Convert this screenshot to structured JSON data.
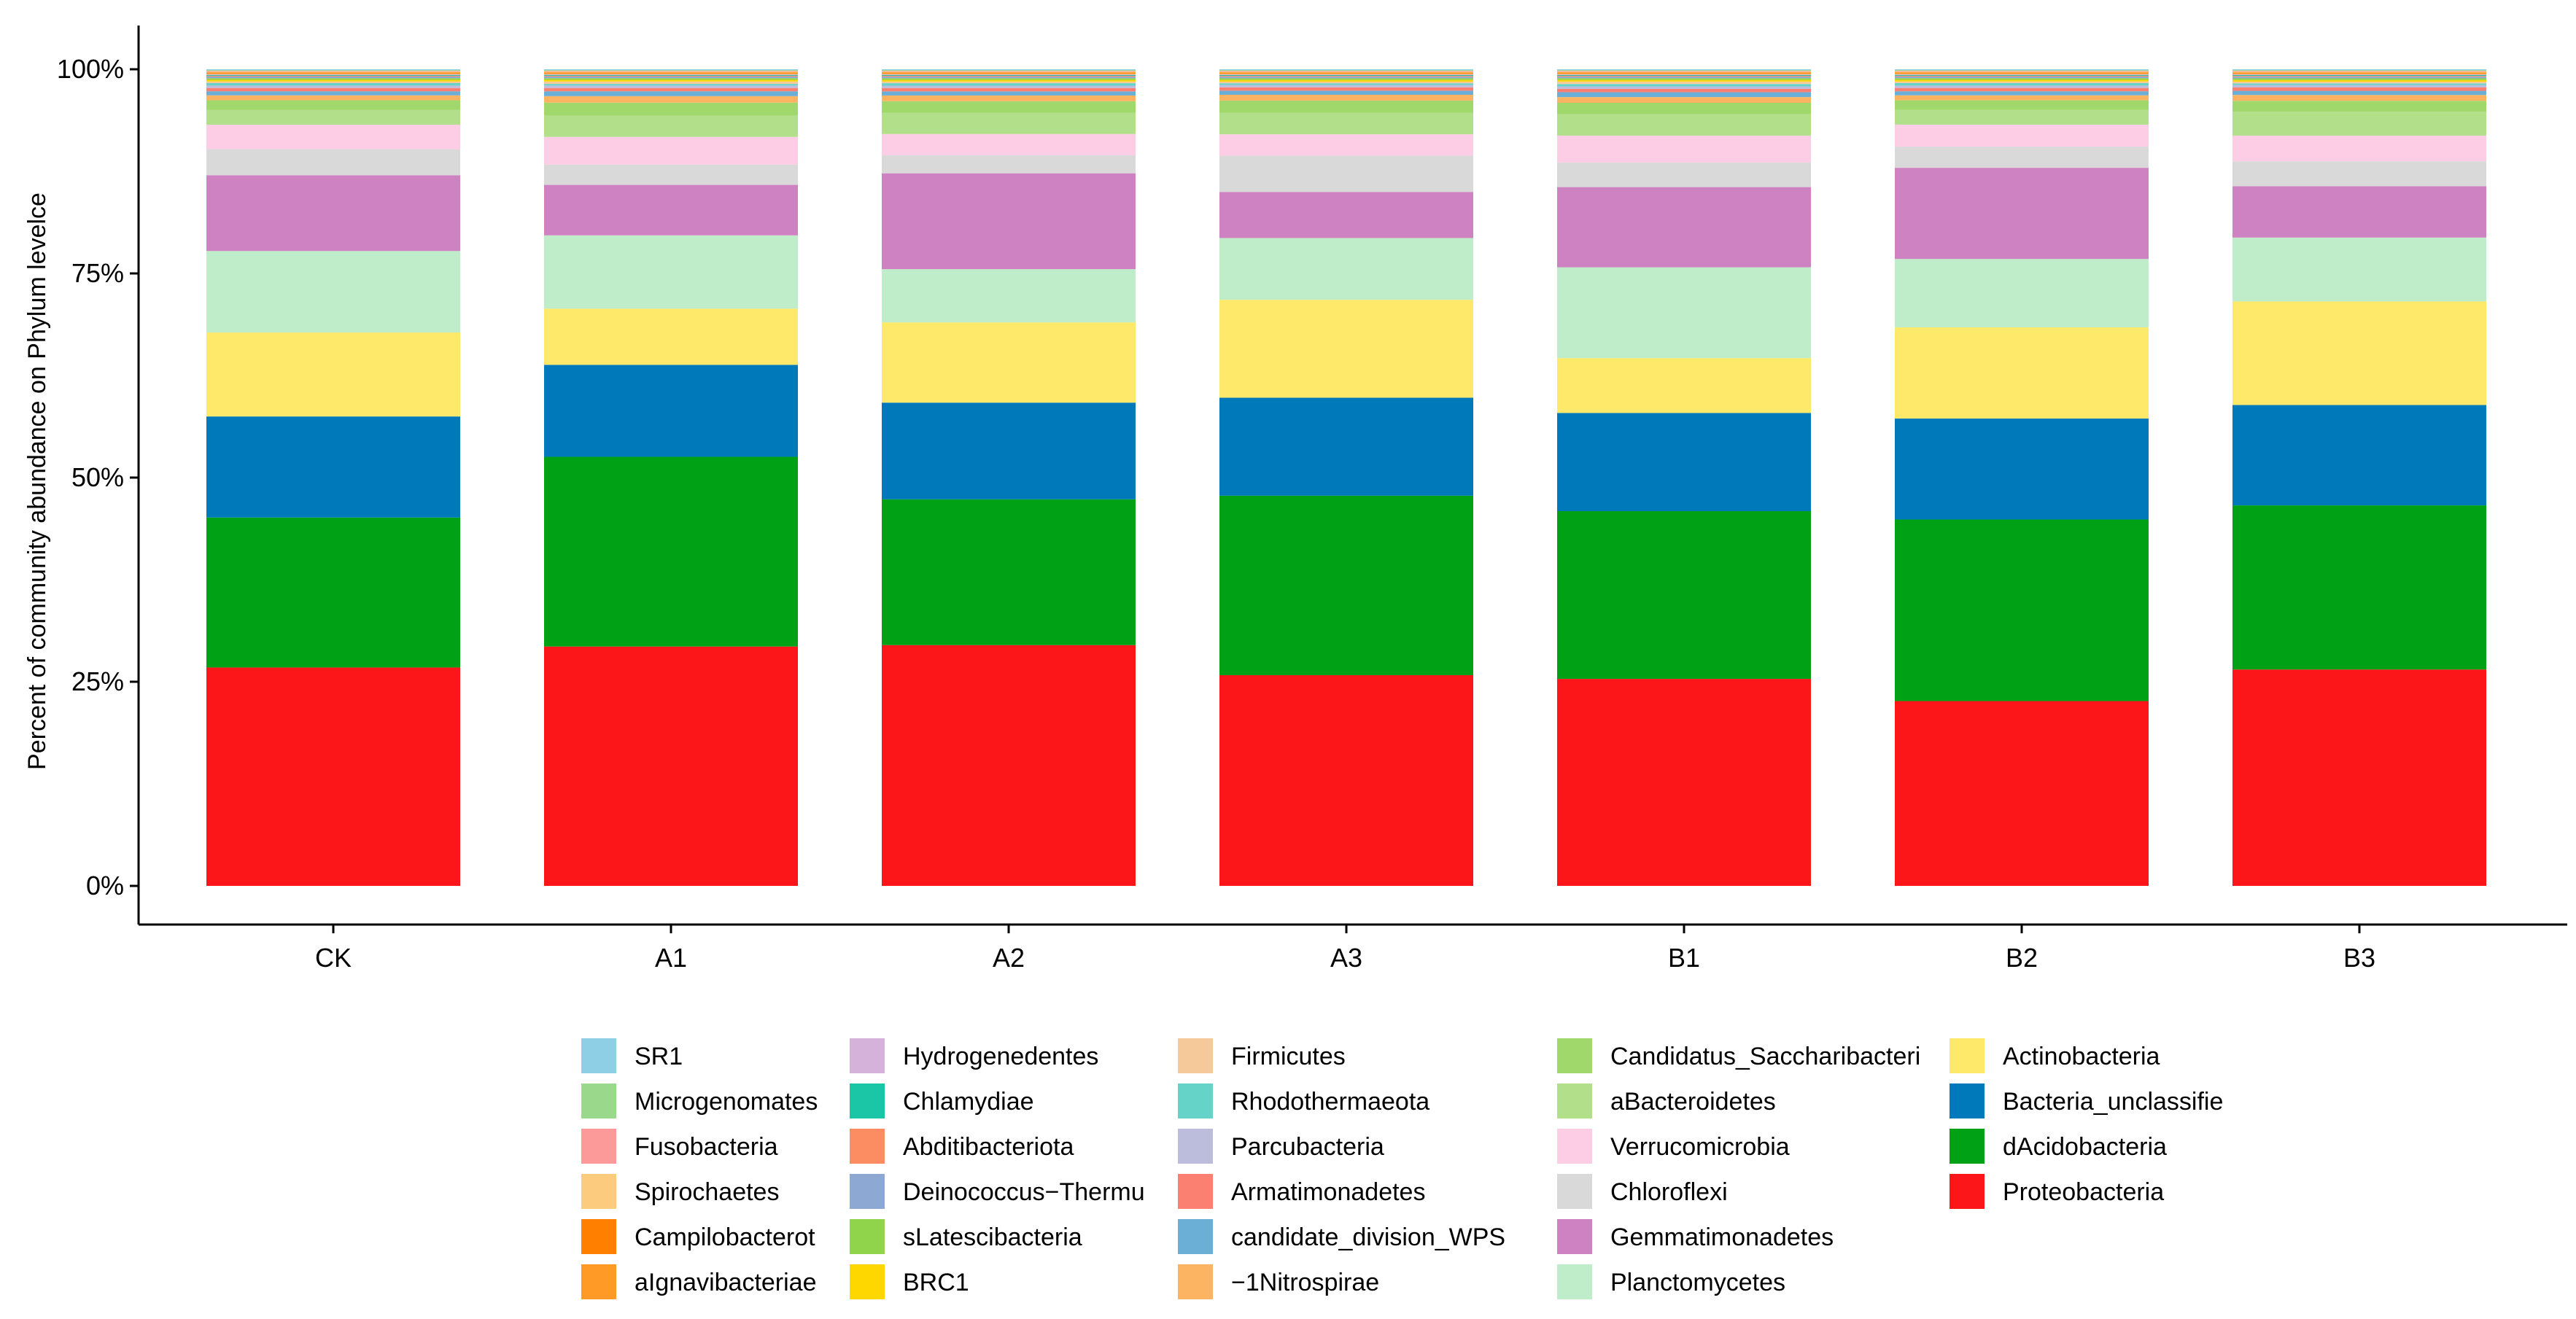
{
  "chart_data": {
    "type": "bar",
    "stacked": true,
    "percent": true,
    "title": "",
    "xlabel": "",
    "ylabel": "Percent of community abundance on Phylum levelce",
    "ylim": [
      0,
      100
    ],
    "yticks": [
      {
        "value": 0,
        "label": "0%"
      },
      {
        "value": 25,
        "label": "25%"
      },
      {
        "value": 50,
        "label": "50%"
      },
      {
        "value": 75,
        "label": "75%"
      },
      {
        "value": 100,
        "label": "100%"
      }
    ],
    "grid": false,
    "legend_position": "bottom",
    "categories": [
      "CK",
      "A1",
      "A2",
      "A3",
      "B1",
      "B2",
      "B3"
    ],
    "series": [
      {
        "name": "Proteobacteria",
        "color": "#fc1519",
        "values": [
          26.8,
          29.4,
          29.4,
          25.6,
          25.3,
          22.7,
          26.1
        ]
      },
      {
        "name": "dAcidobacteria",
        "color": "#00a114",
        "values": [
          18.4,
          23.3,
          17.8,
          21.8,
          20.5,
          22.3,
          19.8
        ]
      },
      {
        "name": "Bacteria_unclassifie",
        "color": "#0079ba",
        "values": [
          12.4,
          11.3,
          11.8,
          11.9,
          12.0,
          12.4,
          12.1
        ]
      },
      {
        "name": "Actinobacteria",
        "color": "#fee96b",
        "values": [
          10.3,
          6.9,
          9.8,
          11.9,
          6.7,
          11.2,
          12.5
        ]
      },
      {
        "name": "Planctomycetes",
        "color": "#bfedca",
        "values": [
          10.0,
          9.0,
          6.5,
          7.5,
          11.1,
          8.4,
          7.7
        ]
      },
      {
        "name": "Gemmatimonadetes",
        "color": "#cf82c1",
        "values": [
          9.3,
          6.2,
          11.7,
          5.6,
          9.8,
          11.2,
          6.2
        ]
      },
      {
        "name": "Chloroflexi",
        "color": "#d9d9d9",
        "values": [
          3.2,
          2.5,
          2.2,
          4.4,
          3.0,
          2.6,
          3.0
        ]
      },
      {
        "name": "Verrucomicrobia",
        "color": "#fdcde5",
        "values": [
          3.0,
          3.4,
          2.6,
          2.6,
          3.3,
          2.7,
          3.1
        ]
      },
      {
        "name": "aBacteroidetes",
        "color": "#b2df8a",
        "values": [
          1.8,
          2.6,
          2.6,
          2.6,
          2.6,
          1.8,
          2.9
        ]
      },
      {
        "name": "Candidatus_Saccharibacteri",
        "color": "#a1d86b",
        "values": [
          1.2,
          1.6,
          1.4,
          1.5,
          1.4,
          1.2,
          1.3
        ]
      },
      {
        "name": "−1Nitrospirae",
        "color": "#fdb462",
        "values": [
          0.6,
          0.8,
          0.7,
          0.7,
          0.7,
          0.6,
          0.7
        ]
      },
      {
        "name": "candidate_division_WPS",
        "color": "#6baed6",
        "values": [
          0.5,
          0.6,
          0.5,
          0.5,
          0.6,
          0.5,
          0.5
        ]
      },
      {
        "name": "Armatimonadetes",
        "color": "#fb8072",
        "values": [
          0.4,
          0.4,
          0.4,
          0.4,
          0.4,
          0.4,
          0.4
        ]
      },
      {
        "name": "Parcubacteria",
        "color": "#bcbddc",
        "values": [
          0.3,
          0.3,
          0.3,
          0.3,
          0.3,
          0.3,
          0.3
        ]
      },
      {
        "name": "Rhodothermaeota",
        "color": "#66d3c8",
        "values": [
          0.3,
          0.2,
          0.3,
          0.2,
          0.3,
          0.3,
          0.2
        ]
      },
      {
        "name": "Firmicutes",
        "color": "#f6c99a",
        "values": [
          0.2,
          0.3,
          0.2,
          0.2,
          0.3,
          0.2,
          0.2
        ]
      },
      {
        "name": "BRC1",
        "color": "#ffd700",
        "values": [
          0.2,
          0.2,
          0.2,
          0.2,
          0.2,
          0.2,
          0.2
        ]
      },
      {
        "name": "sLatescibacteria",
        "color": "#8fd44a",
        "values": [
          0.2,
          0.2,
          0.2,
          0.2,
          0.2,
          0.2,
          0.2
        ]
      },
      {
        "name": "Deinococcus−Thermu",
        "color": "#8ea8d4",
        "values": [
          0.2,
          0.2,
          0.2,
          0.2,
          0.2,
          0.2,
          0.2
        ]
      },
      {
        "name": "Abditibacteriota",
        "color": "#fc8d62",
        "values": [
          0.1,
          0.1,
          0.1,
          0.1,
          0.1,
          0.1,
          0.1
        ]
      },
      {
        "name": "Chlamydiae",
        "color": "#1bc6a6",
        "values": [
          0.1,
          0.1,
          0.1,
          0.1,
          0.1,
          0.1,
          0.1
        ]
      },
      {
        "name": "Hydrogenedentes",
        "color": "#d5b2da",
        "values": [
          0.1,
          0.1,
          0.1,
          0.1,
          0.1,
          0.1,
          0.1
        ]
      },
      {
        "name": "aIgnavibacteriae",
        "color": "#ff9a26",
        "values": [
          0.1,
          0.1,
          0.1,
          0.1,
          0.1,
          0.1,
          0.1
        ]
      },
      {
        "name": "Campilobacterot",
        "color": "#ff7f00",
        "values": [
          0.1,
          0.1,
          0.1,
          0.1,
          0.1,
          0.1,
          0.1
        ]
      },
      {
        "name": "Spirochaetes",
        "color": "#fdcb7d",
        "values": [
          0.1,
          0.1,
          0.1,
          0.1,
          0.1,
          0.1,
          0.1
        ]
      },
      {
        "name": "Fusobacteria",
        "color": "#fb9a99",
        "values": [
          0.1,
          0.1,
          0.1,
          0.1,
          0.1,
          0.1,
          0.1
        ]
      },
      {
        "name": "Microgenomates",
        "color": "#9ad98b",
        "values": [
          0.1,
          0.1,
          0.1,
          0.1,
          0.1,
          0.1,
          0.1
        ]
      },
      {
        "name": "SR1",
        "color": "#8ecfe6",
        "values": [
          0.1,
          0.1,
          0.1,
          0.1,
          0.1,
          0.1,
          0.1
        ]
      }
    ],
    "legend_columns": [
      [
        "SR1",
        "Microgenomates",
        "Fusobacteria",
        "Spirochaetes",
        "Campilobacterot",
        "aIgnavibacteriae"
      ],
      [
        "Hydrogenedentes",
        "Chlamydiae",
        "Abditibacteriota",
        "Deinococcus−Thermu",
        "sLatescibacteria",
        "BRC1"
      ],
      [
        "Firmicutes",
        "Rhodothermaeota",
        "Parcubacteria",
        "Armatimonadetes",
        "candidate_division_WPS",
        "−1Nitrospirae"
      ],
      [
        "Candidatus_Saccharibacteri",
        "aBacteroidetes",
        "Verrucomicrobia",
        "Chloroflexi",
        "Gemmatimonadetes",
        "Planctomycetes"
      ],
      [
        "Actinobacteria",
        "Bacteria_unclassifie",
        "dAcidobacteria",
        "Proteobacteria"
      ]
    ]
  }
}
